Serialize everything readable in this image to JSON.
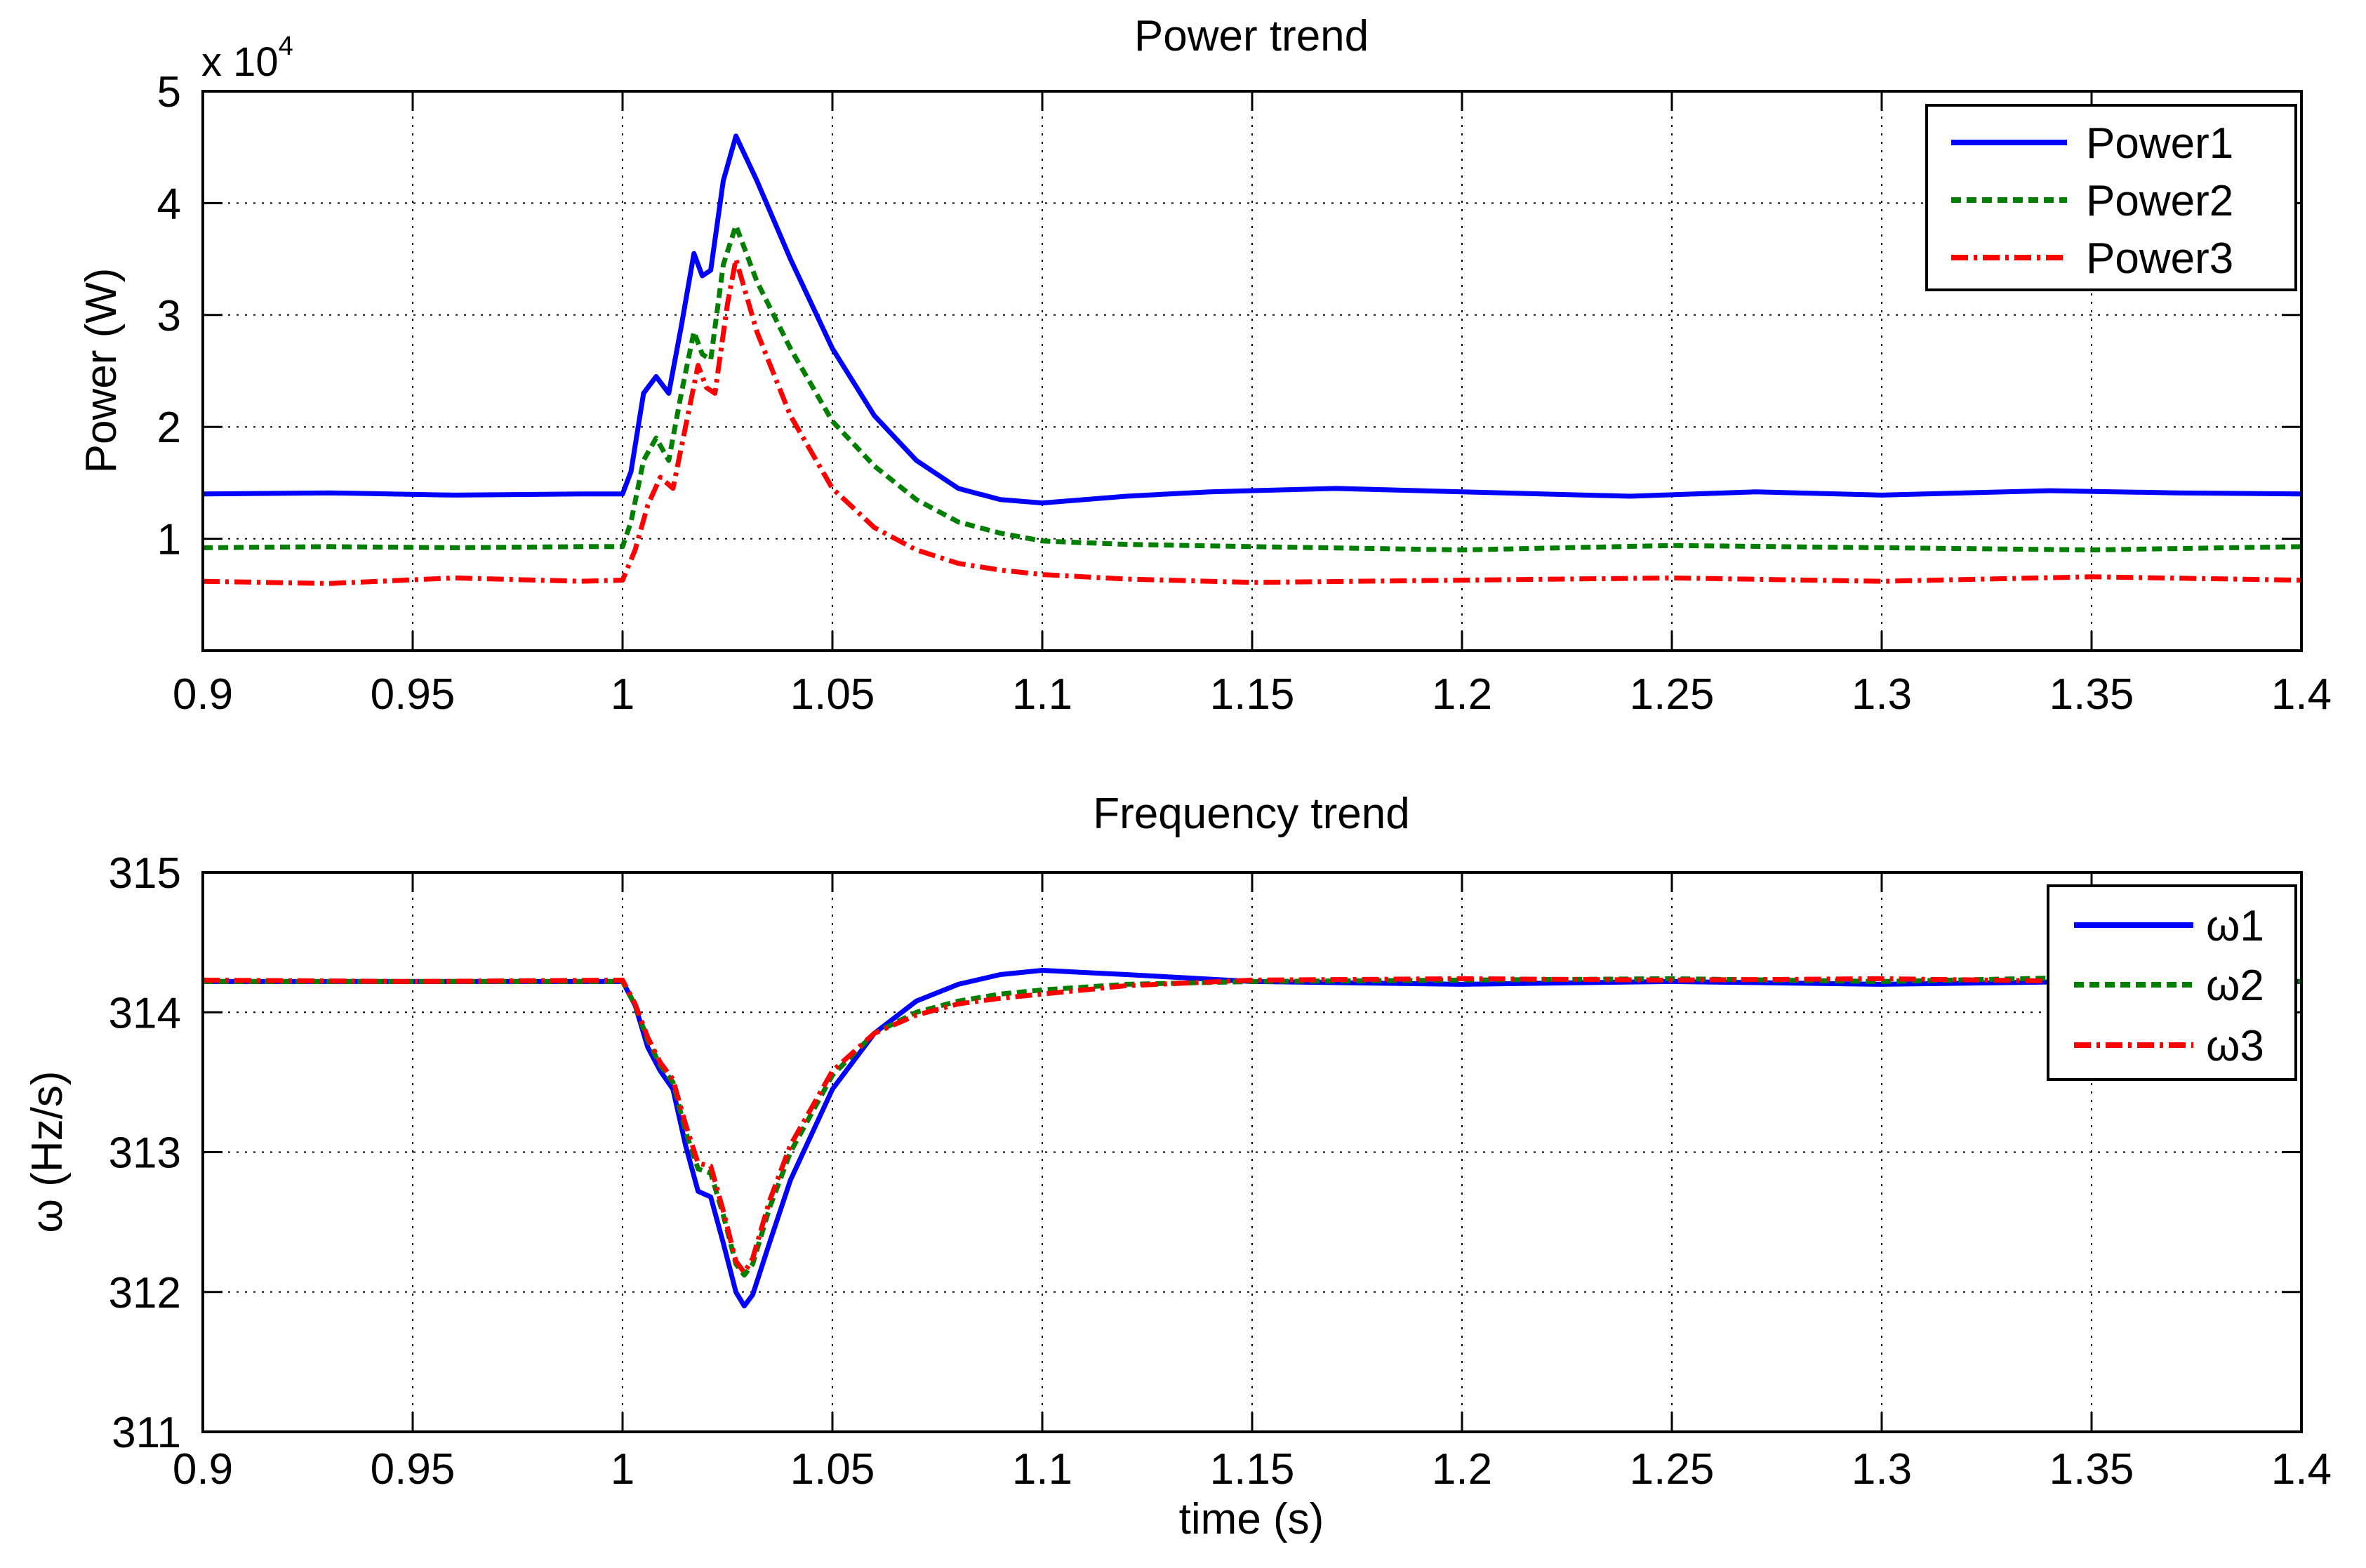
{
  "figure": {
    "background": "#ffffff",
    "series_colors": [
      "#0000ff",
      "#007f00",
      "#ff0000"
    ]
  },
  "chart_data": [
    {
      "type": "line",
      "title": "Power trend",
      "xlabel": "",
      "ylabel": "Power (W)",
      "y_exponent_label": "x 10",
      "y_exponent_power": "4",
      "xlim": [
        0.9,
        1.4
      ],
      "ylim": [
        0,
        5
      ],
      "xticks": [
        0.9,
        0.95,
        1,
        1.05,
        1.1,
        1.15,
        1.2,
        1.25,
        1.3,
        1.35,
        1.4
      ],
      "xtick_labels": [
        "0.9",
        "0.95",
        "1",
        "1.05",
        "1.1",
        "1.15",
        "1.2",
        "1.25",
        "1.3",
        "1.35",
        "1.4"
      ],
      "yticks": [
        1,
        2,
        3,
        4,
        5
      ],
      "ytick_labels": [
        "1",
        "2",
        "3",
        "4",
        "5"
      ],
      "grid": true,
      "legend_position": "top-right",
      "series": [
        {
          "name": "Power1",
          "color": "#0000ff",
          "style": "solid",
          "x": [
            0.9,
            0.93,
            0.96,
            0.99,
            1.0,
            1.002,
            1.005,
            1.008,
            1.011,
            1.014,
            1.017,
            1.019,
            1.021,
            1.024,
            1.027,
            1.032,
            1.04,
            1.05,
            1.06,
            1.07,
            1.08,
            1.09,
            1.1,
            1.12,
            1.14,
            1.17,
            1.2,
            1.24,
            1.27,
            1.3,
            1.34,
            1.37,
            1.4
          ],
          "y": [
            1.4,
            1.41,
            1.39,
            1.4,
            1.4,
            1.6,
            2.3,
            2.45,
            2.3,
            2.9,
            3.55,
            3.35,
            3.4,
            4.2,
            4.6,
            4.2,
            3.5,
            2.7,
            2.1,
            1.7,
            1.45,
            1.35,
            1.32,
            1.38,
            1.42,
            1.45,
            1.42,
            1.38,
            1.42,
            1.39,
            1.43,
            1.41,
            1.4
          ]
        },
        {
          "name": "Power2",
          "color": "#007f00",
          "style": "dashed",
          "x": [
            0.9,
            0.93,
            0.96,
            0.99,
            1.0,
            1.002,
            1.005,
            1.008,
            1.011,
            1.014,
            1.017,
            1.019,
            1.021,
            1.024,
            1.027,
            1.032,
            1.04,
            1.05,
            1.06,
            1.07,
            1.08,
            1.09,
            1.1,
            1.12,
            1.15,
            1.2,
            1.25,
            1.3,
            1.35,
            1.4
          ],
          "y": [
            0.92,
            0.93,
            0.92,
            0.93,
            0.93,
            1.15,
            1.7,
            1.9,
            1.7,
            2.3,
            2.85,
            2.65,
            2.6,
            3.45,
            3.8,
            3.3,
            2.7,
            2.05,
            1.65,
            1.35,
            1.15,
            1.05,
            0.98,
            0.95,
            0.93,
            0.9,
            0.94,
            0.92,
            0.9,
            0.93
          ]
        },
        {
          "name": "Power3",
          "color": "#ff0000",
          "style": "dashdot",
          "x": [
            0.9,
            0.93,
            0.96,
            0.99,
            1.0,
            1.003,
            1.006,
            1.009,
            1.012,
            1.015,
            1.018,
            1.02,
            1.022,
            1.025,
            1.027,
            1.032,
            1.04,
            1.05,
            1.06,
            1.07,
            1.08,
            1.09,
            1.1,
            1.12,
            1.15,
            1.2,
            1.25,
            1.3,
            1.35,
            1.4
          ],
          "y": [
            0.62,
            0.6,
            0.65,
            0.62,
            0.63,
            0.9,
            1.3,
            1.55,
            1.45,
            2.0,
            2.55,
            2.35,
            2.3,
            3.1,
            3.5,
            2.85,
            2.1,
            1.45,
            1.1,
            0.9,
            0.78,
            0.72,
            0.68,
            0.64,
            0.61,
            0.63,
            0.65,
            0.62,
            0.66,
            0.63
          ]
        }
      ]
    },
    {
      "type": "line",
      "title": "Frequency trend",
      "xlabel": "time (s)",
      "ylabel": "ω (Hz/s)",
      "xlim": [
        0.9,
        1.4
      ],
      "ylim": [
        311,
        315
      ],
      "xticks": [
        0.9,
        0.95,
        1,
        1.05,
        1.1,
        1.15,
        1.2,
        1.25,
        1.3,
        1.35,
        1.4
      ],
      "xtick_labels": [
        "0.9",
        "0.95",
        "1",
        "1.05",
        "1.1",
        "1.15",
        "1.2",
        "1.25",
        "1.3",
        "1.35",
        "1.4"
      ],
      "yticks": [
        311,
        312,
        313,
        314,
        315
      ],
      "ytick_labels": [
        "311",
        "312",
        "313",
        "314",
        "315"
      ],
      "grid": true,
      "legend_position": "top-right",
      "series": [
        {
          "name": "ω1",
          "color": "#0000ff",
          "style": "solid",
          "x": [
            0.9,
            0.95,
            1.0,
            1.003,
            1.006,
            1.009,
            1.012,
            1.015,
            1.018,
            1.021,
            1.024,
            1.027,
            1.029,
            1.031,
            1.035,
            1.04,
            1.05,
            1.06,
            1.07,
            1.08,
            1.09,
            1.1,
            1.12,
            1.15,
            1.2,
            1.25,
            1.3,
            1.35,
            1.4
          ],
          "y": [
            314.22,
            314.22,
            314.22,
            314.05,
            313.75,
            313.58,
            313.45,
            313.05,
            312.72,
            312.68,
            312.35,
            312.0,
            311.9,
            311.98,
            312.35,
            312.8,
            313.45,
            313.85,
            314.08,
            314.2,
            314.27,
            314.3,
            314.27,
            314.22,
            314.2,
            314.22,
            314.2,
            314.22,
            314.22
          ]
        },
        {
          "name": "ω2",
          "color": "#007f00",
          "style": "dashed",
          "x": [
            0.9,
            0.95,
            1.0,
            1.003,
            1.006,
            1.009,
            1.012,
            1.015,
            1.018,
            1.021,
            1.024,
            1.027,
            1.029,
            1.031,
            1.035,
            1.04,
            1.05,
            1.06,
            1.07,
            1.08,
            1.09,
            1.1,
            1.12,
            1.15,
            1.2,
            1.25,
            1.3,
            1.35,
            1.4
          ],
          "y": [
            314.22,
            314.22,
            314.22,
            314.05,
            313.8,
            313.62,
            313.5,
            313.15,
            312.88,
            312.85,
            312.55,
            312.2,
            312.12,
            312.2,
            312.6,
            313.0,
            313.55,
            313.85,
            314.0,
            314.08,
            314.13,
            314.16,
            314.2,
            314.22,
            314.23,
            314.24,
            314.22,
            314.25,
            314.22
          ]
        },
        {
          "name": "ω3",
          "color": "#ff0000",
          "style": "dashdot",
          "x": [
            0.9,
            0.95,
            1.0,
            1.003,
            1.006,
            1.009,
            1.012,
            1.015,
            1.018,
            1.021,
            1.024,
            1.027,
            1.029,
            1.031,
            1.035,
            1.04,
            1.05,
            1.06,
            1.07,
            1.08,
            1.09,
            1.1,
            1.12,
            1.15,
            1.2,
            1.25,
            1.3,
            1.35,
            1.4
          ],
          "y": [
            314.23,
            314.22,
            314.23,
            314.06,
            313.82,
            313.64,
            313.52,
            313.2,
            312.92,
            312.9,
            312.58,
            312.22,
            312.14,
            312.24,
            312.65,
            313.05,
            313.58,
            313.85,
            313.98,
            314.06,
            314.1,
            314.13,
            314.19,
            314.23,
            314.24,
            314.23,
            314.24,
            314.22,
            314.23
          ]
        }
      ]
    }
  ]
}
